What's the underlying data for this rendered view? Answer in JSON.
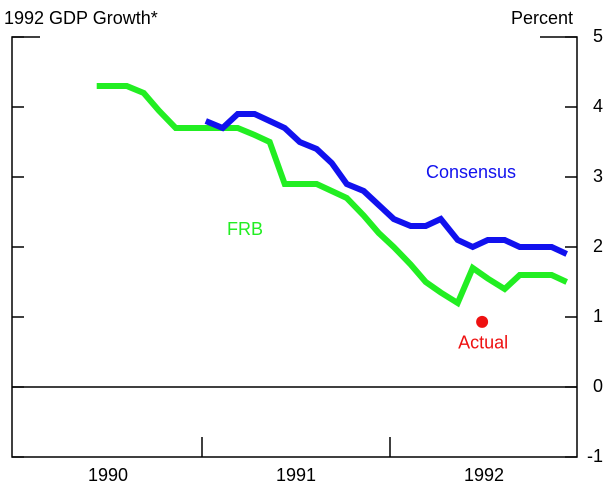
{
  "chart_data": {
    "type": "line",
    "title": "1992 GDP Growth*",
    "y_label": "Percent",
    "xlim": [
      1990,
      1993
    ],
    "ylim": [
      -1,
      5
    ],
    "yticks": [
      -1,
      0,
      1,
      2,
      3,
      4,
      5
    ],
    "xticks": [
      1991,
      1992
    ],
    "xlabels": [
      {
        "value": 1990.5,
        "label": "1990"
      },
      {
        "value": 1991.5,
        "label": "1991"
      },
      {
        "value": 1992.5,
        "label": "1992"
      }
    ],
    "reference_line": 0,
    "series": [
      {
        "name": "FRB",
        "color": "#22ee22",
        "x": [
          1990.44,
          1990.52,
          1990.6,
          1990.69,
          1990.77,
          1990.86,
          1990.94,
          1991.02,
          1991.11,
          1991.19,
          1991.28,
          1991.36,
          1991.44,
          1991.52,
          1991.61,
          1991.69,
          1991.77,
          1991.86,
          1991.94,
          1992.02,
          1992.11,
          1992.19,
          1992.27,
          1992.36,
          1992.44,
          1992.52,
          1992.61,
          1992.69,
          1992.77,
          1992.86,
          1992.94
        ],
        "values": [
          4.3,
          4.3,
          4.3,
          4.2,
          3.95,
          3.7,
          3.7,
          3.7,
          3.7,
          3.7,
          3.6,
          3.5,
          2.9,
          2.9,
          2.9,
          2.8,
          2.7,
          2.45,
          2.2,
          2.0,
          1.75,
          1.5,
          1.35,
          1.2,
          1.7,
          1.55,
          1.4,
          1.6,
          1.6,
          1.6,
          1.5
        ]
      },
      {
        "name": "Consensus",
        "color": "#1111ee",
        "x": [
          1991.02,
          1991.11,
          1991.19,
          1991.28,
          1991.36,
          1991.44,
          1991.52,
          1991.61,
          1991.69,
          1991.77,
          1991.86,
          1991.94,
          1992.02,
          1992.11,
          1992.19,
          1992.27,
          1992.36,
          1992.44,
          1992.52,
          1992.61,
          1992.69,
          1992.77,
          1992.86,
          1992.94
        ],
        "values": [
          3.8,
          3.7,
          3.9,
          3.9,
          3.8,
          3.7,
          3.5,
          3.4,
          3.2,
          2.9,
          2.8,
          2.6,
          2.4,
          2.3,
          2.3,
          2.4,
          2.1,
          2.0,
          2.1,
          2.1,
          2.0,
          2.0,
          2.0,
          1.9
        ]
      }
    ],
    "points": [
      {
        "name": "Actual",
        "color": "#ee1111",
        "x": 1992.49,
        "value": 0.93
      }
    ]
  }
}
